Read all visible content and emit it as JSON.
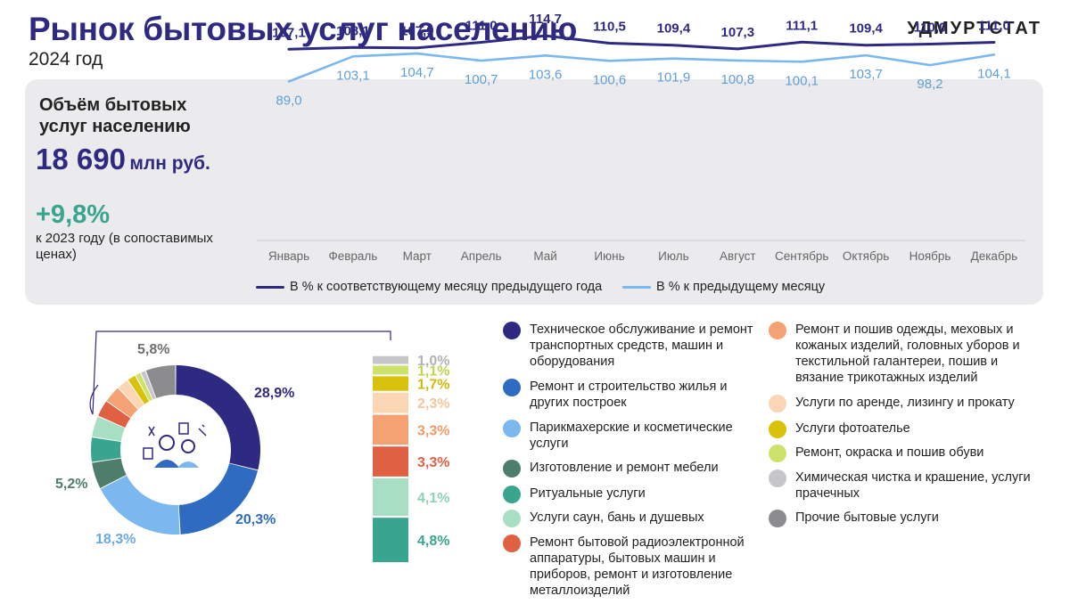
{
  "header": {
    "title": "Рынок бытовых услуг населению",
    "subtitle": "2024 год",
    "brand": "УДМУРТСТАТ"
  },
  "summary": {
    "volume_label": "Объём бытовых услуг населению",
    "volume_value": "18 690",
    "volume_unit": "млн руб.",
    "growth": "+9,8%",
    "growth_note": "к 2023 году (в сопоставимых ценах)"
  },
  "colors": {
    "dark_line": "#2e2a82",
    "light_line": "#7ab8ef",
    "panel": "#ebebed"
  },
  "chart_data": [
    {
      "type": "line",
      "categories": [
        "Январь",
        "Февраль",
        "Март",
        "Апрель",
        "Май",
        "Июнь",
        "Июль",
        "Август",
        "Сентябрь",
        "Октябрь",
        "Ноябрь",
        "Декабрь"
      ],
      "series": [
        {
          "name": "В % к соответствующему месяцу предыдущего года",
          "color": "#2e2a82",
          "values": [
            107.1,
            108.1,
            107.9,
            111.0,
            114.7,
            110.5,
            109.4,
            107.3,
            111.1,
            109.4,
            110.0,
            111.0
          ],
          "labels": [
            "107,1",
            "108,1",
            "107,9",
            "111,0",
            "114,7",
            "110,5",
            "109,4",
            "107,3",
            "111,1",
            "109,4",
            "110,0",
            "111,0"
          ]
        },
        {
          "name": "В % к предыдущему месяцу",
          "color": "#7ab8ef",
          "values": [
            89.0,
            103.1,
            104.7,
            100.7,
            103.6,
            100.6,
            101.9,
            100.8,
            100.1,
            103.7,
            98.2,
            104.1
          ],
          "labels": [
            "89,0",
            "103,1",
            "104,7",
            "100,7",
            "103,6",
            "100,6",
            "101,9",
            "100,8",
            "100,1",
            "103,7",
            "98,2",
            "104,1"
          ]
        }
      ],
      "grid": false,
      "legend": "bottom"
    },
    {
      "type": "pie",
      "style": "donut",
      "slices": [
        {
          "label": "Техническое обслуживание и ремонт транспортных средств, машин и оборудования",
          "value": 28.9,
          "value_label": "28,9%",
          "color": "#2e2a82",
          "label_color": "#2e2a82"
        },
        {
          "label": "Ремонт и строительство жилья и других построек",
          "value": 20.3,
          "value_label": "20,3%",
          "color": "#2f6bc1",
          "label_color": "#2f6bc1"
        },
        {
          "label": "Парикмахерские и косметические услуги",
          "value": 18.3,
          "value_label": "18,3%",
          "color": "#7ab8ef",
          "label_color": "#6aa9e4"
        },
        {
          "label": "Изготовление и ремонт мебели",
          "value": 5.2,
          "value_label": "5,2%",
          "color": "#4f7d6c",
          "label_color": "#4f7d6c"
        },
        {
          "label": "Ритуальные услуги",
          "value": 4.8,
          "value_label": "4,8%",
          "color": "#3aa58f",
          "label_color": "#3aa58f"
        },
        {
          "label": "Услуги саун, бань и душевых",
          "value": 4.1,
          "value_label": "4,1%",
          "color": "#a8dfc4",
          "label_color": "#8fd0b2"
        },
        {
          "label": "Ремонт бытовой радиоэлектронной аппаратуры, бытовых машин и приборов, ремонт и изготовление металлоизделий",
          "value": 3.3,
          "value_label": "3,3%",
          "color": "#df6042",
          "label_color": "#df6042"
        },
        {
          "label": "Ремонт и пошив одежды, меховых и кожаных изделий, головных уборов и текстильной галантереи, пошив и вязание трикотажных изделий",
          "value": 3.3,
          "value_label": "3,3%",
          "color": "#f4a274",
          "label_color": "#ef9a6a"
        },
        {
          "label": "Услуги по аренде, лизингу и прокату",
          "value": 2.3,
          "value_label": "2,3%",
          "color": "#fad6b4",
          "label_color": "#f2c79e"
        },
        {
          "label": "Услуги фотоателье",
          "value": 1.7,
          "value_label": "1,7%",
          "color": "#d9c20c",
          "label_color": "#d1b80a"
        },
        {
          "label": "Ремонт, окраска и пошив обуви",
          "value": 1.1,
          "value_label": "1,1%",
          "color": "#cde26a",
          "label_color": "#bcd54c"
        },
        {
          "label": "Химическая чистка и крашение, услуги прачечных",
          "value": 1.0,
          "value_label": "1,0%",
          "color": "#c6c6c9",
          "label_color": "#b3b3b6"
        },
        {
          "label": "Прочие бытовые услуги",
          "value": 5.8,
          "value_label": "5,8%",
          "color": "#8c8c8f",
          "label_color": "#6f6f72"
        }
      ]
    }
  ],
  "legend_left": [
    {
      "text": "Техническое обслуживание и ремонт транспортных средств, машин и оборудования",
      "color": "#2e2a82"
    },
    {
      "text": "Ремонт и строительство жилья и других построек",
      "color": "#2f6bc1"
    },
    {
      "text": "Парикмахерские и косметические услуги",
      "color": "#7ab8ef"
    },
    {
      "text": "Изготовление и ремонт мебели",
      "color": "#4f7d6c"
    },
    {
      "text": "Ритуальные услуги",
      "color": "#3aa58f"
    },
    {
      "text": "Услуги саун, бань и душевых",
      "color": "#a8dfc4"
    },
    {
      "text": "Ремонт бытовой радиоэлектронной аппаратуры, бытовых машин и приборов, ремонт и изготовление металлоизделий",
      "color": "#df6042"
    }
  ],
  "legend_right": [
    {
      "text": "Ремонт и пошив одежды, меховых и кожаных изделий, головных уборов и текстильной галантереи, пошив и вязание трикотажных изделий",
      "color": "#f4a274"
    },
    {
      "text": "Услуги по аренде, лизингу и прокату",
      "color": "#fad6b4"
    },
    {
      "text": "Услуги фотоателье",
      "color": "#d9c20c"
    },
    {
      "text": "Ремонт, окраска и пошив обуви",
      "color": "#cde26a"
    },
    {
      "text": "Химическая чистка и крашение, услуги прачечных",
      "color": "#c6c6c9"
    },
    {
      "text": "Прочие бытовые услуги",
      "color": "#8c8c8f"
    }
  ],
  "icons": {
    "center": "service-workers-icon"
  }
}
